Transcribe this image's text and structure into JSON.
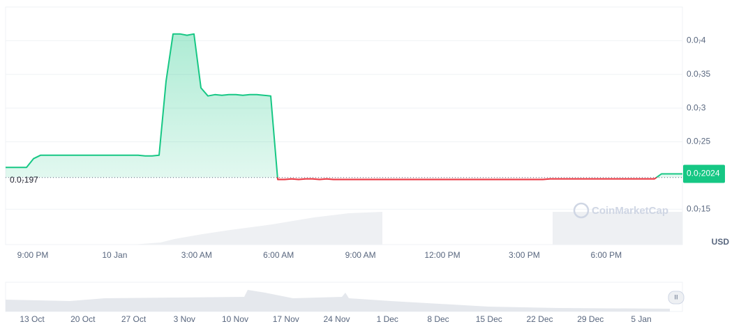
{
  "chart_data": {
    "type": "line",
    "series": [
      {
        "color": "#16c784",
        "color_below": "#ea3943",
        "values": [
          2.12e-08,
          2.12e-08,
          2.12e-08,
          2.12e-08,
          2.25e-08,
          2.3e-08,
          2.3e-08,
          2.3e-08,
          2.3e-08,
          2.3e-08,
          2.3e-08,
          2.3e-08,
          2.3e-08,
          2.3e-08,
          2.3e-08,
          2.3e-08,
          2.3e-08,
          2.3e-08,
          2.3e-08,
          2.3e-08,
          2.29e-08,
          2.29e-08,
          2.3e-08,
          3.4e-08,
          4.1e-08,
          4.1e-08,
          4.08e-08,
          4.1e-08,
          3.3e-08,
          3.18e-08,
          3.2e-08,
          3.19e-08,
          3.2e-08,
          3.2e-08,
          3.19e-08,
          3.2e-08,
          3.2e-08,
          3.19e-08,
          3.18e-08,
          1.94e-08,
          1.94e-08,
          1.95e-08,
          1.94e-08,
          1.95e-08,
          1.95e-08,
          1.94e-08,
          1.95e-08,
          1.94e-08,
          1.94e-08,
          1.94e-08,
          1.94e-08,
          1.94e-08,
          1.94e-08,
          1.94e-08,
          1.94e-08,
          1.94e-08,
          1.94e-08,
          1.94e-08,
          1.94e-08,
          1.94e-08,
          1.94e-08,
          1.94e-08,
          1.94e-08,
          1.94e-08,
          1.94e-08,
          1.94e-08,
          1.94e-08,
          1.94e-08,
          1.94e-08,
          1.94e-08,
          1.94e-08,
          1.94e-08,
          1.94e-08,
          1.94e-08,
          1.94e-08,
          1.94e-08,
          1.94e-08,
          1.94e-08,
          1.95e-08,
          1.95e-08,
          1.95e-08,
          1.95e-08,
          1.95e-08,
          1.95e-08,
          1.95e-08,
          1.95e-08,
          1.95e-08,
          1.95e-08,
          1.95e-08,
          1.95e-08,
          1.95e-08,
          1.95e-08,
          1.95e-08,
          1.95e-08,
          2.024e-08,
          2.024e-08,
          2.024e-08,
          2.024e-08
        ]
      }
    ],
    "baseline": {
      "value": 1.97e-08,
      "label": "0.0₇197"
    },
    "current_price": {
      "value": 2.024e-08,
      "label": "0.0₇2024"
    },
    "ylim": [
      9.75e-09,
      4.5e-08
    ],
    "yticks": [
      {
        "value": 1.5e-08,
        "label": "0.0₇15"
      },
      {
        "value": 2.5e-08,
        "label": "0.0₇25"
      },
      {
        "value": 3e-08,
        "label": "0.0₇3"
      },
      {
        "value": 3.5e-08,
        "label": "0.0₇35"
      },
      {
        "value": 4e-08,
        "label": "0.0₇4"
      }
    ],
    "xticks": [
      "9:00 PM",
      "10 Jan",
      "3:00 AM",
      "6:00 AM",
      "9:00 AM",
      "12:00 PM",
      "3:00 PM",
      "6:00 PM"
    ],
    "unit": "USD",
    "watermark": "CoinMarketCap",
    "grid": true,
    "navigator_labels": [
      "13 Oct",
      "20 Oct",
      "27 Oct",
      "3 Nov",
      "10 Nov",
      "17 Nov",
      "24 Nov",
      "1 Dec",
      "8 Dec",
      "15 Dec",
      "22 Dec",
      "29 Dec",
      "5 Jan"
    ]
  }
}
